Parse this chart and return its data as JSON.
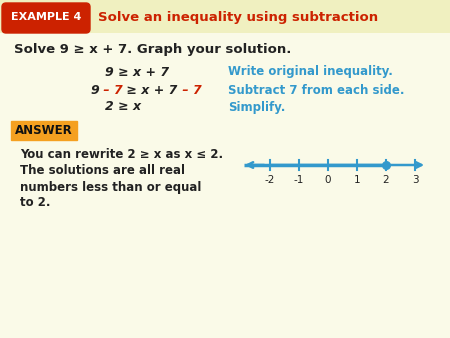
{
  "bg_color": "#fafae8",
  "header_bg_color": "#f0f0c0",
  "example_box_color": "#cc2200",
  "example_box_text": "EXAMPLE 4",
  "example_box_text_color": "#ffffff",
  "header_title": "Solve an inequality using subtraction",
  "header_title_color": "#cc2200",
  "solve_bold": "Solve 9 ≥ x + 7. Graph your solution.",
  "line1_left": "9 ≥ x + 7",
  "line2_seg1": "9",
  "line2_seg2": " – 7",
  "line2_seg3": " ≥ x + 7",
  "line2_seg4": " – 7",
  "line3_left": "2 ≥ x",
  "line1_right": "Write original inequality.",
  "line2_right": "Subtract 7 from each side.",
  "line3_right": "Simplify.",
  "steps_black": "#222222",
  "steps_red": "#cc2200",
  "steps_blue": "#3399cc",
  "answer_box_color": "#f5a020",
  "answer_text": "ANSWER",
  "ans_line1": "You can rewrite 2 ≥ x as x ≤ 2.",
  "ans_line2": "The solutions are all real",
  "ans_line3": "numbers less than or equal",
  "ans_line4": "to 2.",
  "nl_color": "#3399cc",
  "nl_ticks": [
    -2,
    -1,
    0,
    1,
    2,
    3
  ],
  "nl_dot_val": 2
}
